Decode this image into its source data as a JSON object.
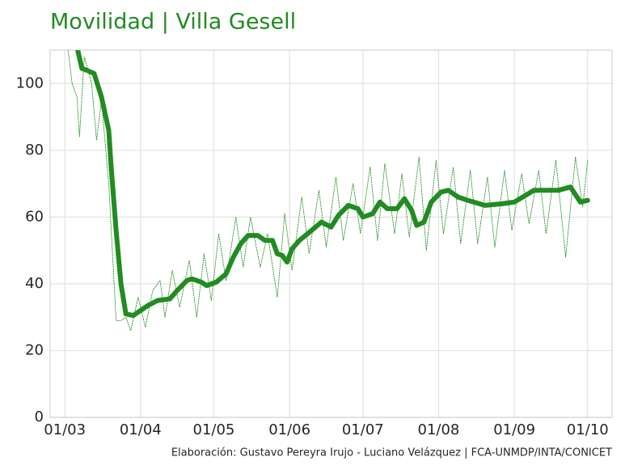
{
  "chart_data": {
    "type": "line",
    "title": "Movilidad | Villa Gesell",
    "caption": "Elaboración: Gustavo Pereyra Irujo - Luciano Velázquez | FCA-UNMDP/INTA/CONICET",
    "xlim": [
      "23/02",
      "11/10"
    ],
    "xticks": [
      "01/03",
      "01/04",
      "01/05",
      "01/06",
      "01/07",
      "01/08",
      "01/09",
      "01/10"
    ],
    "ylim": [
      0,
      110
    ],
    "yticks": [
      0,
      20,
      40,
      60,
      80,
      100
    ],
    "grid": true,
    "series": [
      {
        "name": "daily",
        "color": "#228b22",
        "style": "dotted",
        "x": [
          "02/03",
          "04/03",
          "06/03",
          "07/03",
          "09/03",
          "12/03",
          "14/03",
          "16/03",
          "19/03",
          "22/03",
          "24/03",
          "26/03",
          "28/03",
          "31/03",
          "03/04",
          "06/04",
          "09/04",
          "11/04",
          "14/04",
          "17/04",
          "21/04",
          "24/04",
          "27/04",
          "30/04",
          "03/05",
          "06/05",
          "10/05",
          "13/05",
          "16/05",
          "20/05",
          "23/05",
          "27/05",
          "30/05",
          "02/06",
          "06/06",
          "09/06",
          "13/06",
          "16/06",
          "20/06",
          "23/06",
          "27/06",
          "30/06",
          "04/07",
          "07/07",
          "10/07",
          "14/07",
          "17/07",
          "20/07",
          "24/07",
          "27/07",
          "31/07",
          "03/08",
          "07/08",
          "10/08",
          "14/08",
          "17/08",
          "21/08",
          "24/08",
          "28/08",
          "31/08",
          "04/09",
          "07/09",
          "11/09",
          "14/09",
          "18/09",
          "22/09",
          "26/09",
          "29/09",
          "01/10"
        ],
        "values": [
          112,
          100,
          96,
          84,
          108,
          100,
          83,
          95,
          70,
          29,
          29,
          30,
          26,
          36,
          27,
          38,
          41,
          30,
          44,
          33,
          47,
          30,
          49,
          35,
          55,
          41,
          60,
          45,
          60,
          45,
          55,
          36,
          61,
          44,
          66,
          49,
          68,
          51,
          72,
          53,
          70,
          55,
          75,
          53,
          76,
          55,
          73,
          54,
          78,
          50,
          77,
          55,
          75,
          52,
          74,
          52,
          72,
          51,
          74,
          56,
          73,
          58,
          74,
          55,
          77,
          48,
          78,
          63,
          77
        ]
      },
      {
        "name": "smoothed",
        "color": "#228b22",
        "style": "solid",
        "x": [
          "06/03",
          "08/03",
          "10/03",
          "13/03",
          "16/03",
          "19/03",
          "20/03",
          "22/03",
          "24/03",
          "26/03",
          "29/03",
          "01/04",
          "04/04",
          "08/04",
          "13/04",
          "16/04",
          "20/04",
          "22/04",
          "26/04",
          "28/04",
          "02/05",
          "06/05",
          "09/05",
          "12/05",
          "15/05",
          "19/05",
          "22/05",
          "25/05",
          "27/05",
          "29/05",
          "31/05",
          "02/06",
          "05/06",
          "10/06",
          "14/06",
          "18/06",
          "21/06",
          "25/06",
          "29/06",
          "01/07",
          "05/07",
          "08/07",
          "11/07",
          "15/07",
          "18/07",
          "21/07",
          "23/07",
          "26/07",
          "29/07",
          "02/08",
          "05/08",
          "09/08",
          "13/08",
          "20/08",
          "27/08",
          "01/09",
          "09/09",
          "19/09",
          "24/09",
          "28/09",
          "01/10"
        ],
        "values": [
          111,
          104.5,
          104,
          103,
          96,
          86,
          75,
          56,
          40,
          31,
          30.5,
          32,
          33.5,
          35,
          35.5,
          38,
          41,
          41.5,
          40.5,
          39.5,
          40.5,
          43,
          48,
          52,
          54.5,
          54.5,
          53,
          53,
          49,
          48.5,
          46.5,
          50.5,
          53,
          56,
          58.5,
          57,
          60.5,
          63.5,
          62.5,
          60,
          61,
          64.5,
          62.5,
          62.5,
          65.5,
          62,
          57.5,
          58.5,
          64.5,
          67.5,
          68,
          66,
          65,
          63.5,
          64,
          64.5,
          68,
          68,
          69,
          64.5,
          65
        ]
      }
    ]
  }
}
